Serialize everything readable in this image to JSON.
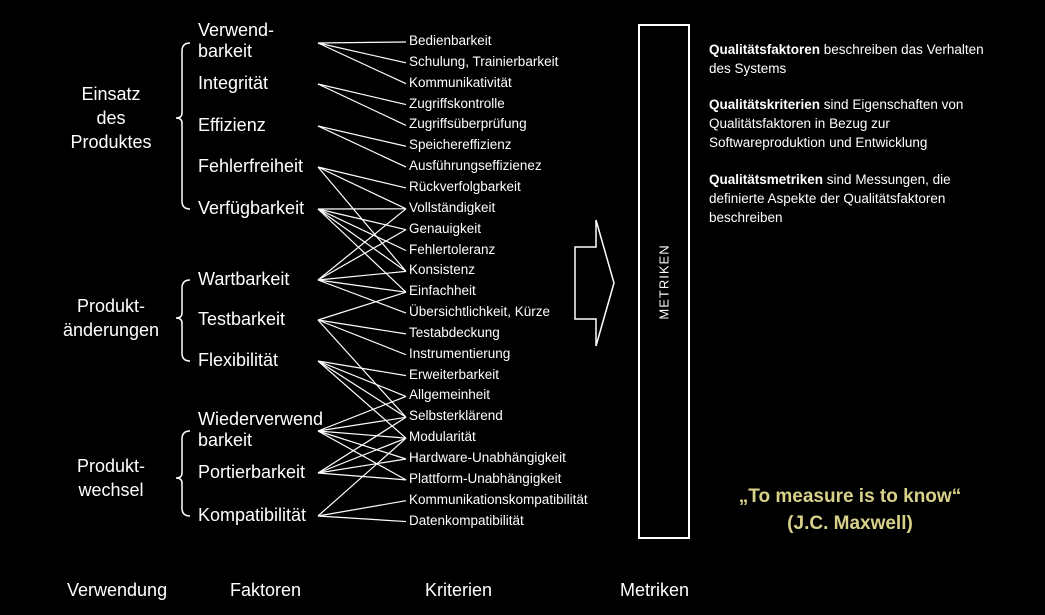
{
  "groups": [
    {
      "lines": [
        "Einsatz",
        "des",
        "Produktes"
      ]
    },
    {
      "lines": [
        "Produkt-",
        "änderungen"
      ]
    },
    {
      "lines": [
        "Produkt-",
        "wechsel"
      ]
    }
  ],
  "factors": [
    {
      "lines": [
        "Verwend-",
        "barkeit"
      ]
    },
    {
      "lines": [
        "Integrität"
      ]
    },
    {
      "lines": [
        "Effizienz"
      ]
    },
    {
      "lines": [
        "Fehlerfreiheit"
      ]
    },
    {
      "lines": [
        "Verfügbarkeit"
      ]
    },
    {
      "lines": [
        "Wartbarkeit"
      ]
    },
    {
      "lines": [
        "Testbarkeit"
      ]
    },
    {
      "lines": [
        "Flexibilität"
      ]
    },
    {
      "lines": [
        "Wiederverwend",
        "barkeit"
      ]
    },
    {
      "lines": [
        "Portierbarkeit"
      ]
    },
    {
      "lines": [
        "Kompatibilität"
      ]
    }
  ],
  "criteria": [
    "Bedienbarkeit",
    "Schulung, Trainierbarkeit",
    "Kommunikativität",
    "Zugriffskontrolle",
    "Zugriffsüberprüfung",
    "Speichereffizienz",
    "Ausführungseffizienez",
    "Rückverfolgbarkeit",
    "Vollständigkeit",
    "Genauigkeit",
    "Fehlertoleranz",
    "Konsistenz",
    "Einfachheit",
    "Übersichtlichkeit, Kürze",
    "Testabdeckung",
    "Instrumentierung",
    "Erweiterbarkeit",
    "Allgemeinheit",
    "Selbsterklärend",
    "Modularität",
    "Hardware-Unabhängigkeit",
    "Plattform-Unabhängigkeit",
    "Kommunikationskompatibilität",
    "Datenkompatibilität"
  ],
  "links": [
    [
      0,
      0
    ],
    [
      0,
      1
    ],
    [
      0,
      2
    ],
    [
      1,
      3
    ],
    [
      1,
      4
    ],
    [
      2,
      5
    ],
    [
      2,
      6
    ],
    [
      3,
      7
    ],
    [
      3,
      8
    ],
    [
      3,
      11
    ],
    [
      4,
      8
    ],
    [
      4,
      9
    ],
    [
      4,
      10
    ],
    [
      4,
      11
    ],
    [
      4,
      12
    ],
    [
      5,
      8
    ],
    [
      5,
      9
    ],
    [
      5,
      11
    ],
    [
      5,
      12
    ],
    [
      5,
      13
    ],
    [
      6,
      12
    ],
    [
      6,
      14
    ],
    [
      6,
      15
    ],
    [
      6,
      18
    ],
    [
      7,
      16
    ],
    [
      7,
      17
    ],
    [
      7,
      18
    ],
    [
      7,
      19
    ],
    [
      8,
      17
    ],
    [
      8,
      18
    ],
    [
      8,
      19
    ],
    [
      8,
      20
    ],
    [
      8,
      21
    ],
    [
      9,
      18
    ],
    [
      9,
      19
    ],
    [
      9,
      20
    ],
    [
      9,
      21
    ],
    [
      10,
      22
    ],
    [
      10,
      23
    ],
    [
      10,
      19
    ]
  ],
  "metriken_box_label": "METRIKEN",
  "notes": [
    {
      "bold": "Qualitätsfaktoren",
      "text": " beschreiben das Verhalten des Systems"
    },
    {
      "bold": "Qualitätskriterien",
      "text": " sind Eigenschaften von Qualitätsfaktoren in Bezug zur Softwareproduktion und Entwicklung"
    },
    {
      "bold": "Qualitätsmetriken",
      "text": " sind Messungen, die definierte Aspekte der Qualitätsfaktoren beschreiben"
    }
  ],
  "quote": {
    "line1": "„To measure is to know“",
    "line2": "(J.C. Maxwell)"
  },
  "quote_color": "#d8d18a",
  "column_titles": {
    "verwendung": "Verwendung",
    "faktoren": "Faktoren",
    "kriterien": "Kriterien",
    "metriken": "Metriken"
  }
}
